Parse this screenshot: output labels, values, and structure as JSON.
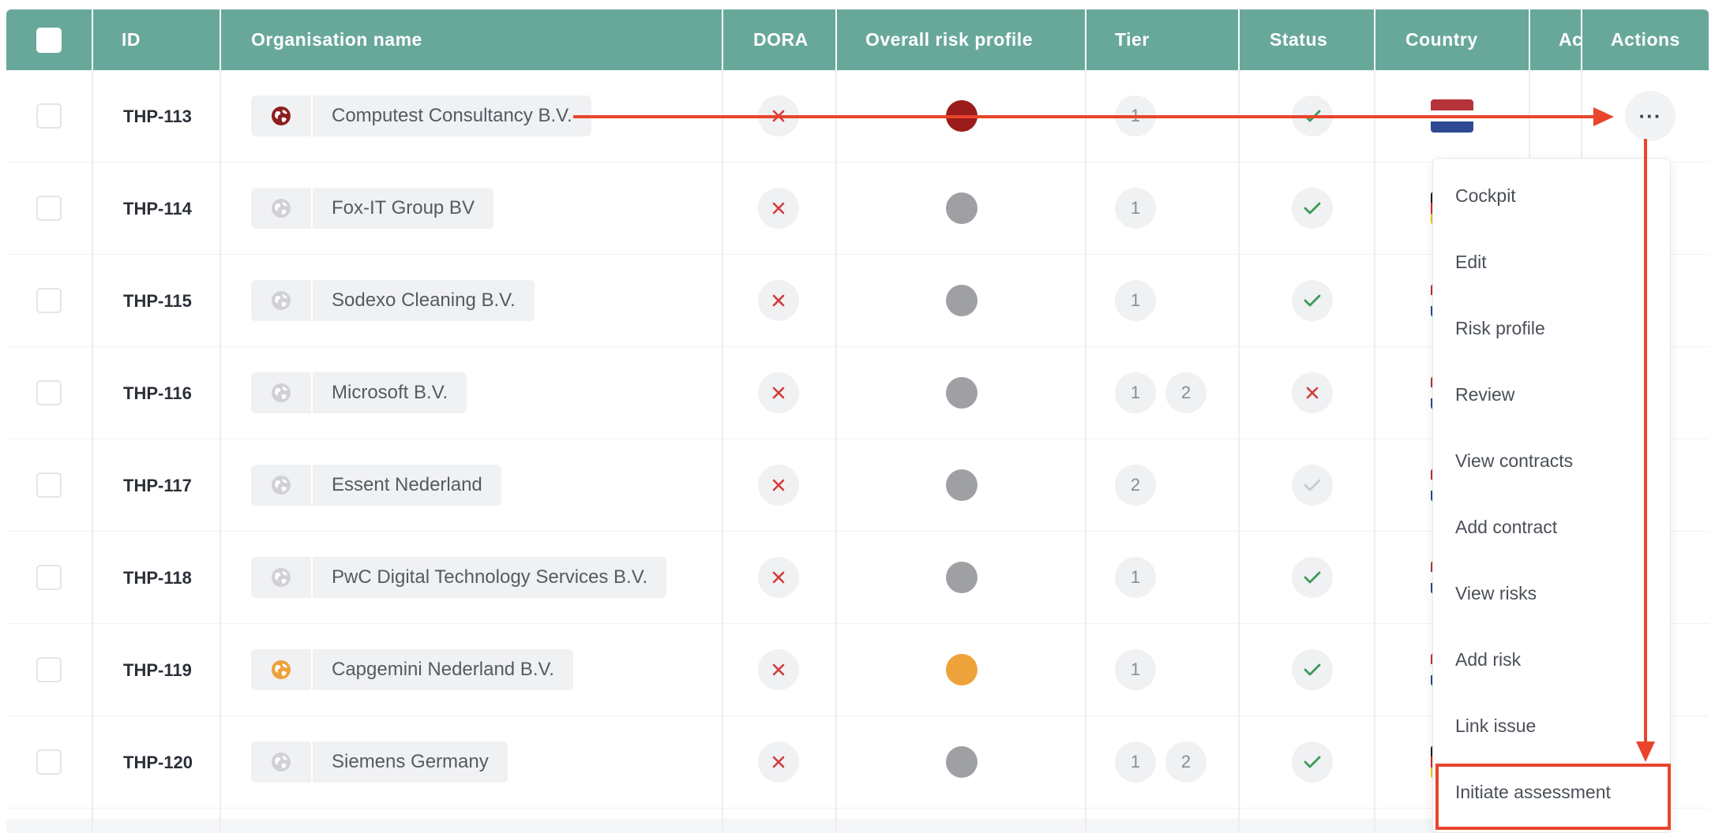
{
  "table": {
    "columns": {
      "id": "ID",
      "org": "Organisation name",
      "dora": "DORA",
      "risk": "Overall risk profile",
      "tier": "Tier",
      "status": "Status",
      "country": "Country",
      "ac": "Ac",
      "actions": "Actions"
    },
    "rows": [
      {
        "id": "THP-113",
        "name": "Computest Consultancy B.V.",
        "icon_color": "#8e1f1f",
        "dora": "no",
        "risk_color": "#9b1c1c",
        "tiers": [
          "1"
        ],
        "status": "ok",
        "flag": "nl"
      },
      {
        "id": "THP-114",
        "name": "Fox-IT Group BV",
        "icon_color": "#cfd1d4",
        "dora": "no",
        "risk_color": "#9fa0a3",
        "tiers": [
          "1"
        ],
        "status": "ok",
        "flag": "de"
      },
      {
        "id": "THP-115",
        "name": "Sodexo Cleaning B.V.",
        "icon_color": "#cfd1d4",
        "dora": "no",
        "risk_color": "#9fa0a3",
        "tiers": [
          "1"
        ],
        "status": "ok",
        "flag": "nl"
      },
      {
        "id": "THP-116",
        "name": "Microsoft B.V.",
        "icon_color": "#cfd1d4",
        "dora": "no",
        "risk_color": "#9fa0a3",
        "tiers": [
          "1",
          "2"
        ],
        "status": "no",
        "flag": "nl"
      },
      {
        "id": "THP-117",
        "name": "Essent Nederland",
        "icon_color": "#cfd1d4",
        "dora": "no",
        "risk_color": "#9fa0a3",
        "tiers": [
          "2"
        ],
        "status": "pending",
        "flag": "nl"
      },
      {
        "id": "THP-118",
        "name": "PwC Digital Technology Services B.V.",
        "icon_color": "#cfd1d4",
        "dora": "no",
        "risk_color": "#9fa0a3",
        "tiers": [
          "1"
        ],
        "status": "ok",
        "flag": "nl"
      },
      {
        "id": "THP-119",
        "name": "Capgemini Nederland B.V.",
        "icon_color": "#eda23a",
        "dora": "no",
        "risk_color": "#eda23a",
        "tiers": [
          "1"
        ],
        "status": "ok",
        "flag": "nl"
      },
      {
        "id": "THP-120",
        "name": "Siemens Germany",
        "icon_color": "#cfd1d4",
        "dora": "no",
        "risk_color": "#9fa0a3",
        "tiers": [
          "1",
          "2"
        ],
        "status": "ok",
        "flag": "de"
      }
    ]
  },
  "actions_menu": {
    "more_label": "···",
    "items": [
      {
        "label": "Cockpit",
        "name": "menu-item-cockpit"
      },
      {
        "label": "Edit",
        "name": "menu-item-edit"
      },
      {
        "label": "Risk profile",
        "name": "menu-item-risk-profile"
      },
      {
        "label": "Review",
        "name": "menu-item-review"
      },
      {
        "label": "View contracts",
        "name": "menu-item-view-contracts"
      },
      {
        "label": "Add contract",
        "name": "menu-item-add-contract"
      },
      {
        "label": "View risks",
        "name": "menu-item-view-risks"
      },
      {
        "label": "Add risk",
        "name": "menu-item-add-risk"
      },
      {
        "label": "Link issue",
        "name": "menu-item-link-issue"
      },
      {
        "label": "Initiate assessment",
        "name": "menu-item-initiate-assessment"
      }
    ]
  },
  "colors": {
    "header": "#68a89b",
    "annotation": "#e8452b",
    "ok": "#3a9a57",
    "no": "#d23b3b",
    "pending": "#c9cbce"
  }
}
